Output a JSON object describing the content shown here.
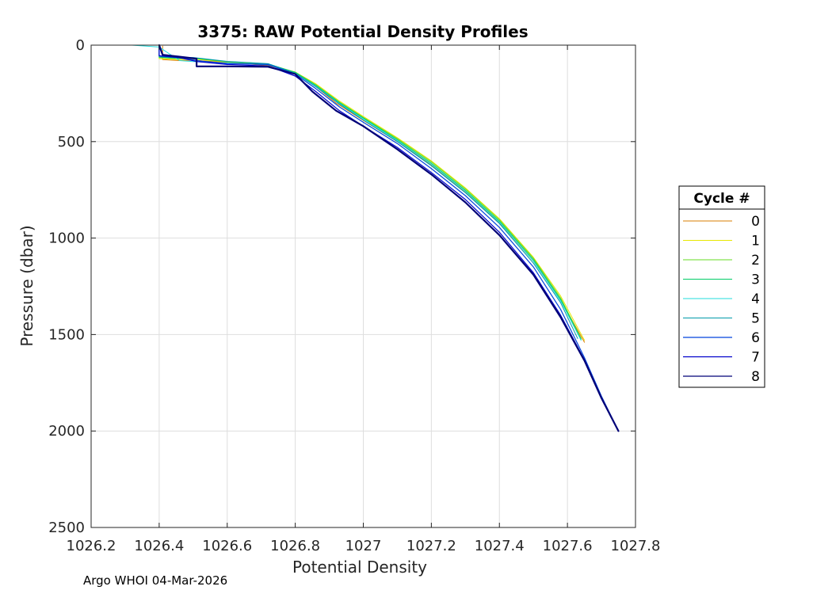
{
  "footer": "Argo WHOI 04-Mar-2026",
  "chart_data": {
    "type": "line",
    "title": "3375: RAW Potential Density Profiles",
    "xlabel": "Potential Density",
    "ylabel": "Pressure (dbar)",
    "xlim": [
      1026.2,
      1027.8
    ],
    "ylim": [
      0,
      2500
    ],
    "y_reversed": true,
    "grid": true,
    "x_ticks": [
      1026.2,
      1026.4,
      1026.6,
      1026.8,
      1027,
      1027.2,
      1027.4,
      1027.6,
      1027.8
    ],
    "x_tick_labels": [
      "1026.2",
      "1026.4",
      "1026.6",
      "1026.8",
      "1027",
      "1027.2",
      "1027.4",
      "1027.6",
      "1027.8"
    ],
    "y_ticks": [
      0,
      500,
      1000,
      1500,
      2000,
      2500
    ],
    "y_tick_labels": [
      "0",
      "500",
      "1000",
      "1500",
      "2000",
      "2500"
    ],
    "legend": {
      "title": "Cycle #",
      "placement": "right-outside"
    },
    "series": [
      {
        "name": "0",
        "color": "#d97c00",
        "width": 1.0,
        "x": [
          1026.41,
          1026.41,
          1026.46,
          1026.5,
          1026.6,
          1026.72,
          1026.8,
          1026.85,
          1026.92,
          1027.0,
          1027.1,
          1027.2,
          1027.3,
          1027.4,
          1027.5,
          1027.58,
          1027.65
        ],
        "y": [
          5,
          75,
          80,
          78,
          90,
          105,
          140,
          200,
          300,
          390,
          500,
          620,
          760,
          920,
          1120,
          1320,
          1540
        ]
      },
      {
        "name": "1",
        "color": "#e8e800",
        "width": 1.0,
        "x": [
          1026.4,
          1026.4,
          1026.46,
          1026.5,
          1026.6,
          1026.72,
          1026.8,
          1026.86,
          1026.93,
          1027.0,
          1027.1,
          1027.2,
          1027.3,
          1027.4,
          1027.5,
          1027.58,
          1027.65
        ],
        "y": [
          5,
          70,
          75,
          72,
          88,
          100,
          140,
          200,
          290,
          370,
          480,
          600,
          740,
          900,
          1100,
          1300,
          1530
        ]
      },
      {
        "name": "2",
        "color": "#66dd22",
        "width": 1.0,
        "x": [
          1026.4,
          1026.4,
          1026.46,
          1026.5,
          1026.6,
          1026.72,
          1026.8,
          1026.86,
          1026.93,
          1027.0,
          1027.1,
          1027.2,
          1027.3,
          1027.4,
          1027.5,
          1027.58,
          1027.64
        ],
        "y": [
          5,
          65,
          70,
          68,
          86,
          98,
          140,
          205,
          295,
          375,
          485,
          605,
          745,
          905,
          1105,
          1310,
          1520
        ]
      },
      {
        "name": "3",
        "color": "#00cc66",
        "width": 1.0,
        "x": [
          1026.4,
          1026.4,
          1026.46,
          1026.5,
          1026.6,
          1026.72,
          1026.8,
          1026.86,
          1026.93,
          1027.0,
          1027.1,
          1027.2,
          1027.3,
          1027.4,
          1027.5,
          1027.58,
          1027.64
        ],
        "y": [
          5,
          62,
          68,
          66,
          85,
          97,
          142,
          208,
          298,
          378,
          490,
          612,
          752,
          912,
          1112,
          1318,
          1525
        ]
      },
      {
        "name": "4",
        "color": "#22dddd",
        "width": 1.0,
        "x": [
          1026.32,
          1026.4,
          1026.46,
          1026.5,
          1026.6,
          1026.72,
          1026.8,
          1026.86,
          1026.93,
          1027.0,
          1027.1,
          1027.2,
          1027.3,
          1027.4,
          1027.5,
          1027.58,
          1027.64
        ],
        "y": [
          0,
          10,
          80,
          85,
          92,
          102,
          145,
          212,
          302,
          382,
          495,
          618,
          758,
          918,
          1120,
          1325,
          1530
        ]
      },
      {
        "name": "5",
        "color": "#0099aa",
        "width": 1.0,
        "x": [
          1026.4,
          1026.4,
          1026.46,
          1026.5,
          1026.6,
          1026.72,
          1026.8,
          1026.86,
          1026.93,
          1027.0,
          1027.1,
          1027.2,
          1027.3,
          1027.4,
          1027.5,
          1027.58,
          1027.63
        ],
        "y": [
          5,
          60,
          66,
          64,
          84,
          96,
          145,
          215,
          305,
          388,
          500,
          625,
          765,
          925,
          1130,
          1335,
          1520
        ]
      },
      {
        "name": "6",
        "color": "#0044dd",
        "width": 1.2,
        "x": [
          1026.4,
          1026.4,
          1026.46,
          1026.51,
          1026.6,
          1026.72,
          1026.8,
          1026.86,
          1026.93,
          1027.0,
          1027.1,
          1027.2,
          1027.3,
          1027.4,
          1027.5,
          1027.58,
          1027.65,
          1027.7,
          1027.75
        ],
        "y": [
          5,
          55,
          65,
          80,
          95,
          100,
          150,
          225,
          320,
          400,
          510,
          640,
          780,
          945,
          1150,
          1370,
          1620,
          1820,
          2000
        ]
      },
      {
        "name": "7",
        "color": "#0000cc",
        "width": 1.2,
        "x": [
          1026.4,
          1026.4,
          1026.46,
          1026.51,
          1026.6,
          1026.72,
          1026.8,
          1026.86,
          1026.93,
          1027.0,
          1027.1,
          1027.2,
          1027.3,
          1027.4,
          1027.5,
          1027.58,
          1027.65,
          1027.7,
          1027.75
        ],
        "y": [
          5,
          55,
          65,
          85,
          100,
          108,
          160,
          240,
          340,
          420,
          530,
          660,
          800,
          970,
          1180,
          1400,
          1630,
          1830,
          2000
        ]
      },
      {
        "name": "8",
        "color": "#000077",
        "width": 2.2,
        "x": [
          1026.4,
          1026.41,
          1026.46,
          1026.51,
          1026.51,
          1026.6,
          1026.72,
          1026.8,
          1026.85,
          1026.92,
          1027.0,
          1027.1,
          1027.2,
          1027.3,
          1027.4,
          1027.5,
          1027.58,
          1027.65,
          1027.7,
          1027.75
        ],
        "y": [
          0,
          50,
          60,
          70,
          110,
          110,
          112,
          150,
          240,
          340,
          420,
          540,
          670,
          815,
          985,
          1190,
          1410,
          1635,
          1830,
          2000
        ]
      }
    ]
  }
}
